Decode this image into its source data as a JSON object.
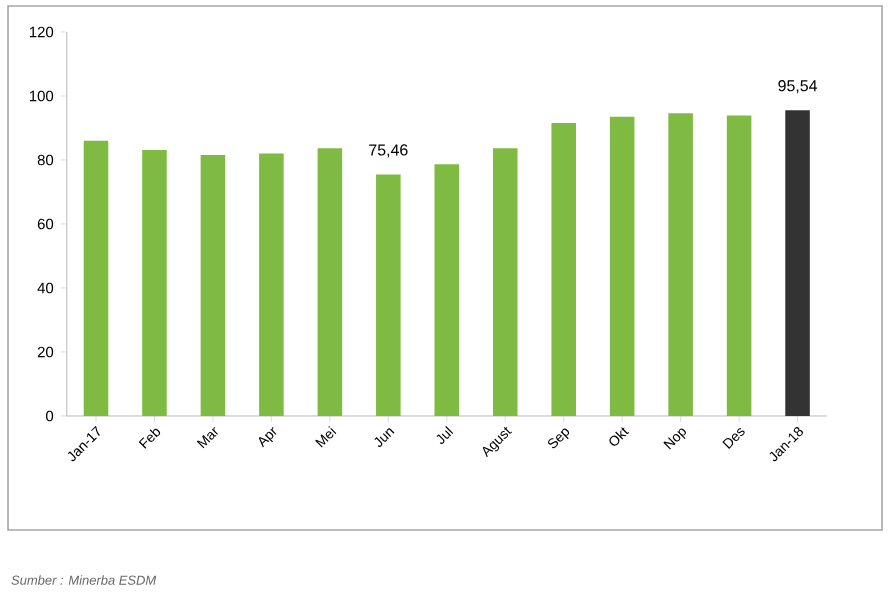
{
  "chart_data": {
    "type": "bar",
    "categories": [
      "Jan-17",
      "Feb",
      "Mar",
      "Apr",
      "Mei",
      "Jun",
      "Jul",
      "Agust",
      "Sep",
      "Okt",
      "Nop",
      "Des",
      "Jan-18"
    ],
    "values": [
      86.0,
      83.1,
      81.6,
      82.0,
      83.7,
      75.46,
      78.7,
      83.7,
      91.6,
      93.5,
      94.6,
      93.9,
      95.54
    ],
    "colors": [
      "#7fba42",
      "#7fba42",
      "#7fba42",
      "#7fba42",
      "#7fba42",
      "#7fba42",
      "#7fba42",
      "#7fba42",
      "#7fba42",
      "#7fba42",
      "#7fba42",
      "#7fba42",
      "#333333"
    ],
    "value_labels": [
      null,
      null,
      null,
      null,
      null,
      "75,46",
      null,
      null,
      null,
      null,
      null,
      null,
      "95,54"
    ],
    "ylim": [
      0,
      120
    ],
    "yticks": [
      0,
      20,
      40,
      60,
      80,
      100,
      120
    ],
    "annotations": [
      "Sumber : Minerba ESDM"
    ]
  }
}
